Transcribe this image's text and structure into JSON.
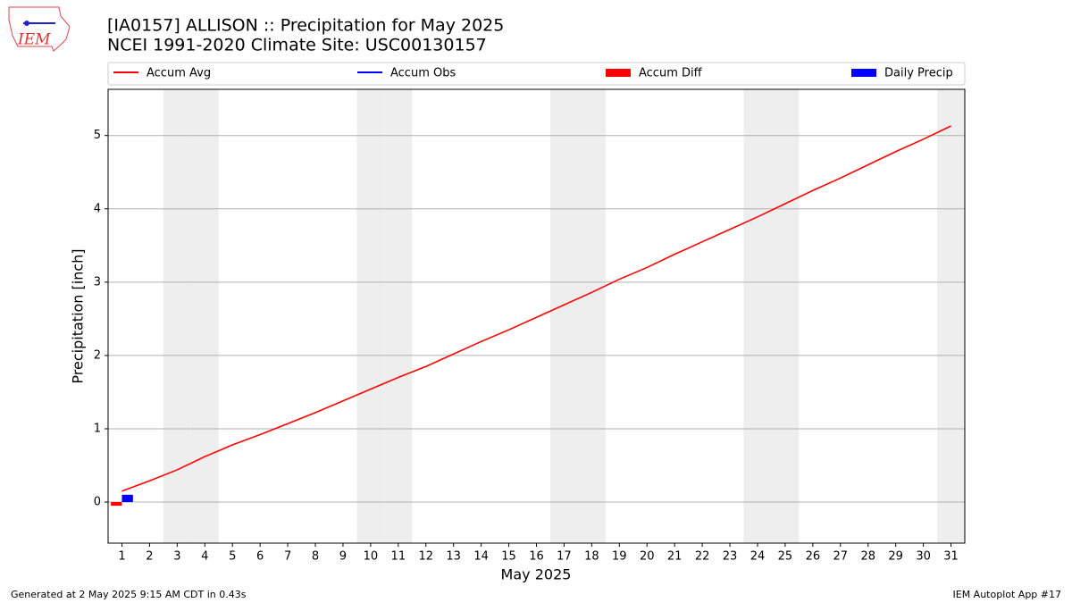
{
  "chart_data": {
    "type": "line",
    "logo_text": "IEM",
    "title": "[IA0157] ALLISON :: Precipitation for May 2025",
    "subtitle": "NCEI 1991-2020 Climate Site: USC00130157",
    "x_label": "May 2025",
    "y_label": "Precipitation [inch]",
    "footer_left": "Generated at 2 May 2025 9:15 AM CDT in 0.43s",
    "footer_right": "IEM Autoplot App #17",
    "x": [
      1,
      2,
      3,
      4,
      5,
      6,
      7,
      8,
      9,
      10,
      11,
      12,
      13,
      14,
      15,
      16,
      17,
      18,
      19,
      20,
      21,
      22,
      23,
      24,
      25,
      26,
      27,
      28,
      29,
      30,
      31
    ],
    "xlim": [
      0.5,
      31.5
    ],
    "xticks": [
      1,
      2,
      3,
      4,
      5,
      6,
      7,
      8,
      9,
      10,
      11,
      12,
      13,
      14,
      15,
      16,
      17,
      18,
      19,
      20,
      21,
      22,
      23,
      24,
      25,
      26,
      27,
      28,
      29,
      30,
      31
    ],
    "ylim": [
      -0.56,
      5.63
    ],
    "yticks": [
      0,
      1,
      2,
      3,
      4,
      5
    ],
    "grid": true,
    "shade_days": [
      3,
      4,
      10,
      11,
      17,
      18,
      24,
      25,
      31
    ],
    "shade_color": "#eeeeee",
    "legend": "top",
    "series": [
      {
        "name": "Accum Avg",
        "kind": "line",
        "color": "#ff0000",
        "values": [
          0.15,
          0.29,
          0.44,
          0.62,
          0.78,
          0.92,
          1.07,
          1.22,
          1.38,
          1.54,
          1.7,
          1.85,
          2.02,
          2.19,
          2.35,
          2.52,
          2.69,
          2.86,
          3.04,
          3.2,
          3.38,
          3.55,
          3.72,
          3.89,
          4.07,
          4.25,
          4.42,
          4.6,
          4.78,
          4.95,
          5.13
        ]
      },
      {
        "name": "Accum Obs",
        "kind": "line",
        "color": "#0000ff",
        "values": [
          0.1,
          null,
          null,
          null,
          null,
          null,
          null,
          null,
          null,
          null,
          null,
          null,
          null,
          null,
          null,
          null,
          null,
          null,
          null,
          null,
          null,
          null,
          null,
          null,
          null,
          null,
          null,
          null,
          null,
          null,
          null
        ]
      },
      {
        "name": "Accum Diff",
        "kind": "bar-left",
        "color": "#ff0000",
        "values": [
          -0.05,
          null,
          null,
          null,
          null,
          null,
          null,
          null,
          null,
          null,
          null,
          null,
          null,
          null,
          null,
          null,
          null,
          null,
          null,
          null,
          null,
          null,
          null,
          null,
          null,
          null,
          null,
          null,
          null,
          null,
          null
        ]
      },
      {
        "name": "Daily Precip",
        "kind": "bar-right",
        "color": "#0000ff",
        "values": [
          0.1,
          null,
          null,
          null,
          null,
          null,
          null,
          null,
          null,
          null,
          null,
          null,
          null,
          null,
          null,
          null,
          null,
          null,
          null,
          null,
          null,
          null,
          null,
          null,
          null,
          null,
          null,
          null,
          null,
          null,
          null
        ]
      }
    ]
  }
}
